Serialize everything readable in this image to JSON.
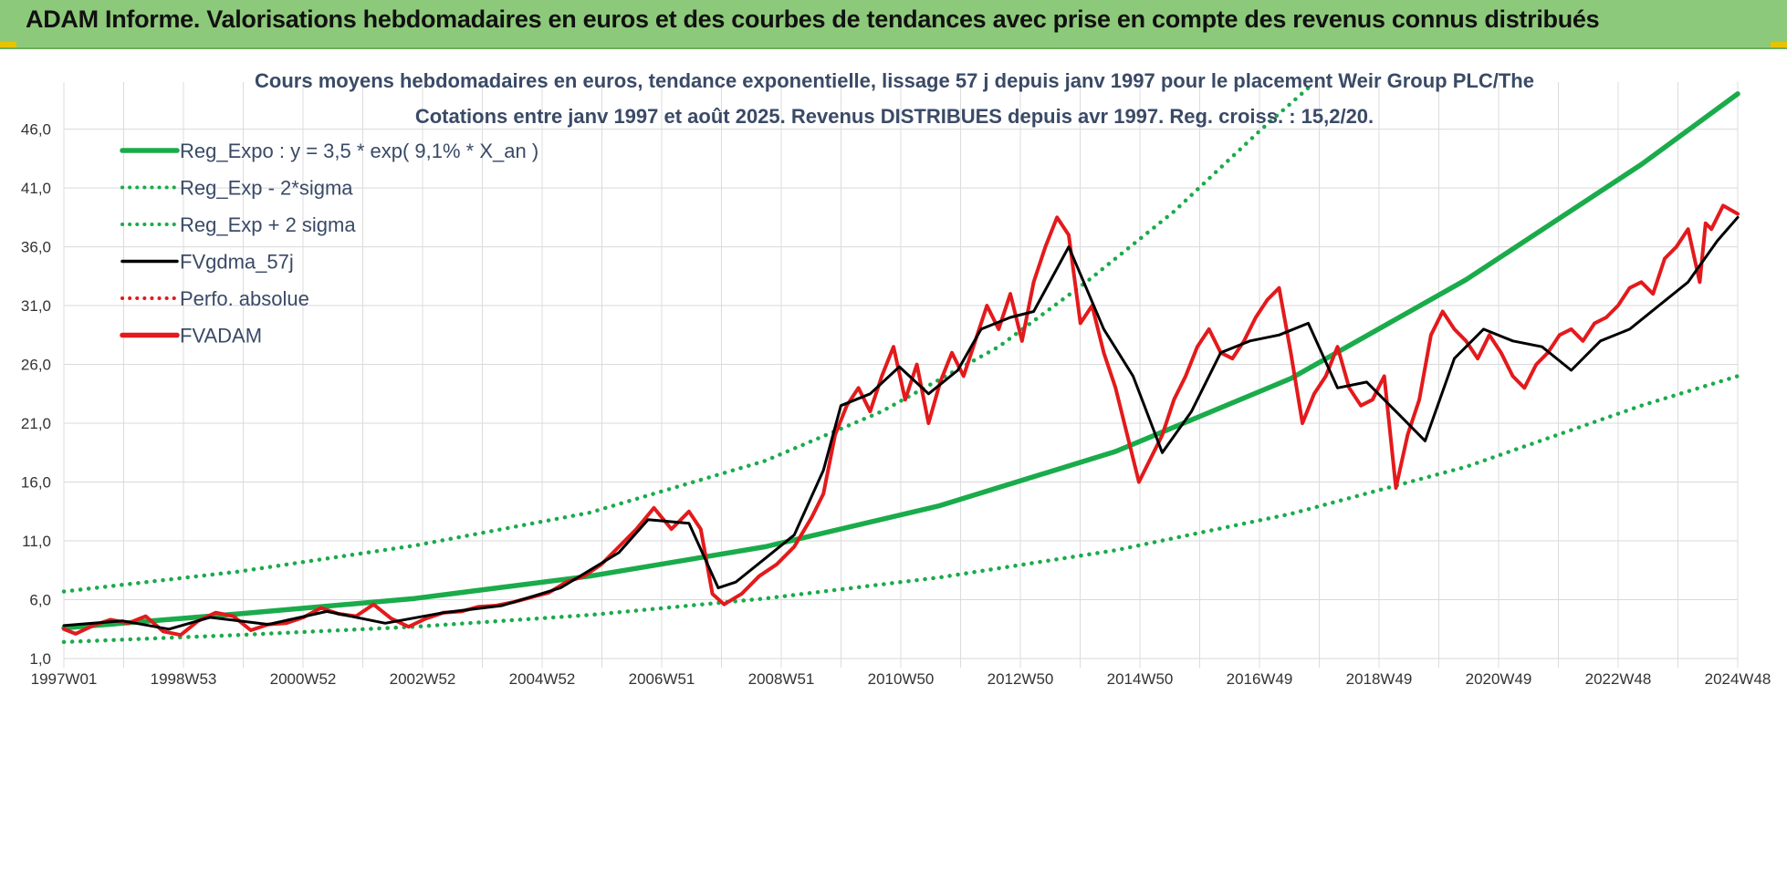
{
  "header": {
    "title": "ADAM Informe. Valorisations hebdomadaires en euros et des courbes de tendances avec prise en compte des revenus connus distribués",
    "background": "#8dc97a"
  },
  "chart_data": {
    "type": "line",
    "title_line1": "Cours moyens hebdomadaires en euros, tendance exponentielle, lissage 57 j depuis janv 1997 pour le placement Weir Group PLC/The",
    "title_line2": "Cotations entre janv 1997 et août 2025.  Revenus DISTRIBUES depuis avr 1997. Reg. croiss. : 15,2/20.",
    "x_tick_labels": [
      "1997W01",
      "1998W53",
      "2000W52",
      "2002W52",
      "2004W52",
      "2006W51",
      "2008W51",
      "2010W50",
      "2012W50",
      "2014W50",
      "2016W49",
      "2018W49",
      "2020W49",
      "2022W48",
      "2024W48"
    ],
    "x_range": [
      1997.0,
      2025.65
    ],
    "y_ticks": [
      1.0,
      6.0,
      11.0,
      16.0,
      21.0,
      26.0,
      31.0,
      36.0,
      41.0,
      46.0
    ],
    "y_tick_labels": [
      "1,0",
      "6,0",
      "11,0",
      "16,0",
      "21,0",
      "26,0",
      "31,0",
      "36,0",
      "41,0",
      "46,0"
    ],
    "ylim": [
      1.0,
      50.0
    ],
    "grid": true,
    "legend_position": "top-left",
    "legend": [
      {
        "label": "Reg_Expo : y = 3,5 * exp( 9,1% *  X_an )",
        "color": "#1aab4b",
        "style": "solid-thick"
      },
      {
        "label": "Reg_Exp - 2*sigma",
        "color": "#1aab4b",
        "style": "dotted"
      },
      {
        "label": "Reg_Exp + 2 sigma",
        "color": "#1aab4b",
        "style": "dotted"
      },
      {
        "label": "FVgdma_57j",
        "color": "#000000",
        "style": "solid"
      },
      {
        "label": "Perfo. absolue",
        "color": "#e31a1c",
        "style": "dotted"
      },
      {
        "label": "FVADAM",
        "color": "#e31a1c",
        "style": "solid-thick"
      }
    ],
    "series": [
      {
        "name": "Reg_Expo : y = 3,5 * exp( 9,1% *  X_an )",
        "color": "#1aab4b",
        "x": [
          1997.0,
          2000.0,
          2003.0,
          2006.0,
          2009.0,
          2012.0,
          2015.0,
          2018.0,
          2021.0,
          2024.0,
          2025.65
        ],
        "y": [
          3.6,
          4.8,
          6.1,
          8.0,
          10.5,
          14.0,
          18.6,
          24.8,
          33.2,
          43.0,
          49.0
        ]
      },
      {
        "name": "Reg_Exp - 2*sigma",
        "color": "#1aab4b",
        "x": [
          1997.0,
          2000.0,
          2003.0,
          2006.0,
          2009.0,
          2012.0,
          2015.0,
          2018.0,
          2021.0,
          2024.0,
          2025.65
        ],
        "y": [
          2.4,
          3.0,
          3.7,
          4.7,
          6.1,
          7.9,
          10.2,
          13.3,
          17.3,
          22.5,
          25.0
        ]
      },
      {
        "name": "Reg_Exp + 2 sigma",
        "color": "#1aab4b",
        "x": [
          1997.0,
          2000.0,
          2003.0,
          2006.0,
          2009.0,
          2011.0,
          2013.0,
          2014.5,
          2016.0,
          2017.5,
          2018.3
        ],
        "y": [
          6.7,
          8.4,
          10.6,
          13.4,
          17.8,
          22.0,
          27.5,
          33.0,
          39.0,
          46.0,
          49.5
        ]
      },
      {
        "name": "FVgdma_57j",
        "color": "#000000",
        "x": [
          1997.0,
          1998.0,
          1998.8,
          1999.5,
          2000.5,
          2001.5,
          2002.5,
          2003.5,
          2004.5,
          2005.5,
          2006.5,
          2007.0,
          2007.7,
          2008.2,
          2008.5,
          2009.0,
          2009.5,
          2010.0,
          2010.3,
          2010.8,
          2011.3,
          2011.8,
          2012.3,
          2012.7,
          2013.2,
          2013.6,
          2014.2,
          2014.8,
          2015.3,
          2015.8,
          2016.3,
          2016.8,
          2017.3,
          2017.8,
          2018.3,
          2018.8,
          2019.3,
          2019.8,
          2020.3,
          2020.8,
          2021.3,
          2021.8,
          2022.3,
          2022.8,
          2023.3,
          2023.8,
          2024.3,
          2024.8,
          2025.3,
          2025.65
        ],
        "y": [
          3.8,
          4.2,
          3.5,
          4.5,
          3.9,
          5.0,
          4.0,
          4.9,
          5.5,
          7.0,
          10.0,
          12.8,
          12.5,
          7.0,
          7.5,
          9.5,
          11.5,
          17.0,
          22.5,
          23.5,
          25.8,
          23.5,
          25.5,
          29.0,
          30.0,
          30.5,
          36.0,
          29.0,
          25.0,
          18.5,
          22.0,
          27.0,
          28.0,
          28.5,
          29.5,
          24.0,
          24.5,
          22.0,
          19.5,
          26.5,
          29.0,
          28.0,
          27.5,
          25.5,
          28.0,
          29.0,
          31.0,
          33.0,
          36.5,
          38.5
        ]
      },
      {
        "name": "FVADAM",
        "color": "#e31a1c",
        "x": [
          1997.0,
          1997.2,
          1997.5,
          1997.8,
          1998.1,
          1998.4,
          1998.7,
          1999.0,
          1999.3,
          1999.6,
          1999.9,
          2000.2,
          2000.5,
          2000.8,
          2001.1,
          2001.4,
          2001.7,
          2002.0,
          2002.3,
          2002.6,
          2002.9,
          2003.2,
          2003.5,
          2003.8,
          2004.1,
          2004.4,
          2004.7,
          2005.0,
          2005.3,
          2005.6,
          2005.9,
          2006.2,
          2006.5,
          2006.8,
          2007.1,
          2007.4,
          2007.7,
          2007.9,
          2008.1,
          2008.3,
          2008.6,
          2008.9,
          2009.2,
          2009.5,
          2009.8,
          2010.0,
          2010.2,
          2010.4,
          2010.6,
          2010.8,
          2011.0,
          2011.2,
          2011.4,
          2011.6,
          2011.8,
          2012.0,
          2012.2,
          2012.4,
          2012.6,
          2012.8,
          2013.0,
          2013.2,
          2013.4,
          2013.6,
          2013.8,
          2014.0,
          2014.2,
          2014.4,
          2014.6,
          2014.8,
          2015.0,
          2015.2,
          2015.4,
          2015.6,
          2015.8,
          2016.0,
          2016.2,
          2016.4,
          2016.6,
          2016.8,
          2017.0,
          2017.2,
          2017.4,
          2017.6,
          2017.8,
          2018.0,
          2018.2,
          2018.4,
          2018.6,
          2018.8,
          2019.0,
          2019.2,
          2019.4,
          2019.6,
          2019.8,
          2020.0,
          2020.2,
          2020.4,
          2020.6,
          2020.8,
          2021.0,
          2021.2,
          2021.4,
          2021.6,
          2021.8,
          2022.0,
          2022.2,
          2022.4,
          2022.6,
          2022.8,
          2023.0,
          2023.2,
          2023.4,
          2023.6,
          2023.8,
          2024.0,
          2024.2,
          2024.4,
          2024.6,
          2024.8,
          2025.0,
          2025.1,
          2025.2,
          2025.4,
          2025.65
        ],
        "y": [
          3.5,
          3.1,
          3.8,
          4.3,
          4.0,
          4.6,
          3.3,
          3.0,
          4.2,
          4.9,
          4.6,
          3.4,
          3.9,
          4.0,
          4.5,
          5.3,
          4.8,
          4.6,
          5.6,
          4.4,
          3.7,
          4.4,
          4.9,
          5.0,
          5.4,
          5.5,
          5.8,
          6.2,
          6.6,
          7.5,
          8.0,
          9.0,
          10.5,
          12.0,
          13.8,
          12.0,
          13.5,
          12.0,
          6.5,
          5.6,
          6.5,
          8.0,
          9.0,
          10.5,
          13.0,
          15.0,
          20.0,
          22.5,
          24.0,
          22.0,
          25.0,
          27.5,
          23.0,
          26.0,
          21.0,
          24.5,
          27.0,
          25.0,
          28.0,
          31.0,
          29.0,
          32.0,
          28.0,
          33.0,
          36.0,
          38.5,
          37.0,
          29.5,
          31.0,
          27.0,
          24.0,
          20.0,
          16.0,
          18.0,
          20.0,
          23.0,
          25.0,
          27.5,
          29.0,
          27.0,
          26.5,
          28.0,
          30.0,
          31.5,
          32.5,
          27.0,
          21.0,
          23.5,
          25.0,
          27.5,
          24.0,
          22.5,
          23.0,
          25.0,
          15.5,
          20.0,
          23.0,
          28.5,
          30.5,
          29.0,
          28.0,
          26.5,
          28.5,
          27.0,
          25.0,
          24.0,
          26.0,
          27.0,
          28.5,
          29.0,
          28.0,
          29.5,
          30.0,
          31.0,
          32.5,
          33.0,
          32.0,
          35.0,
          36.0,
          37.5,
          33.0,
          38.0,
          37.5,
          39.5,
          38.8
        ]
      }
    ]
  }
}
